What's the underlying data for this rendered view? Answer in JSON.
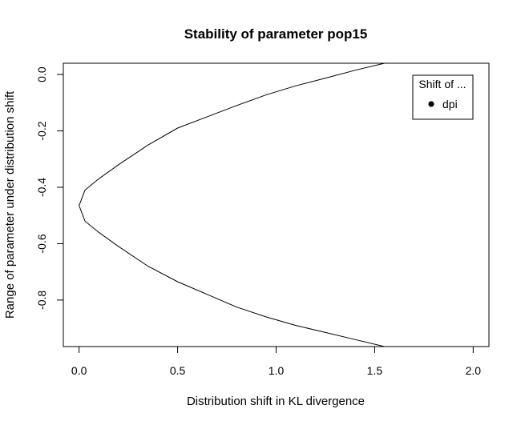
{
  "chart_data": {
    "type": "line",
    "title": "Stability of parameter pop15",
    "xlabel": "Distribution shift in KL divergence",
    "ylabel": "Range of parameter under distribution shift",
    "xlim": [
      -0.08,
      2.08
    ],
    "ylim": [
      -0.965,
      0.04
    ],
    "x_ticks": [
      0.0,
      0.5,
      1.0,
      1.5,
      2.0
    ],
    "x_tick_labels": [
      "0.0",
      "0.5",
      "1.0",
      "1.5",
      "2.0"
    ],
    "y_ticks": [
      -0.8,
      -0.6,
      -0.4,
      -0.2,
      0.0
    ],
    "y_tick_labels": [
      "-0.8",
      "-0.6",
      "-0.4",
      "-0.2",
      "0.0"
    ],
    "grid": false,
    "legend": {
      "placement": "top-right",
      "title": "Shift of ...",
      "entries": [
        {
          "label": "dpi",
          "marker": "filled-circle",
          "color": "#000000"
        }
      ]
    },
    "series": [
      {
        "name": "dpi",
        "color": "#000000",
        "points": [
          [
            1.55,
            0.04
          ],
          [
            1.4,
            0.015
          ],
          [
            1.25,
            -0.013
          ],
          [
            1.1,
            -0.04
          ],
          [
            0.95,
            -0.072
          ],
          [
            0.8,
            -0.11
          ],
          [
            0.65,
            -0.15
          ],
          [
            0.5,
            -0.19
          ],
          [
            0.35,
            -0.25
          ],
          [
            0.2,
            -0.32
          ],
          [
            0.1,
            -0.37
          ],
          [
            0.03,
            -0.41
          ],
          [
            0.0,
            -0.465
          ],
          [
            0.03,
            -0.52
          ],
          [
            0.1,
            -0.56
          ],
          [
            0.2,
            -0.61
          ],
          [
            0.35,
            -0.68
          ],
          [
            0.5,
            -0.735
          ],
          [
            0.65,
            -0.78
          ],
          [
            0.8,
            -0.825
          ],
          [
            0.95,
            -0.86
          ],
          [
            1.1,
            -0.89
          ],
          [
            1.25,
            -0.915
          ],
          [
            1.4,
            -0.94
          ],
          [
            1.55,
            -0.965
          ],
          [
            2.08,
            -0.965
          ]
        ]
      }
    ]
  }
}
